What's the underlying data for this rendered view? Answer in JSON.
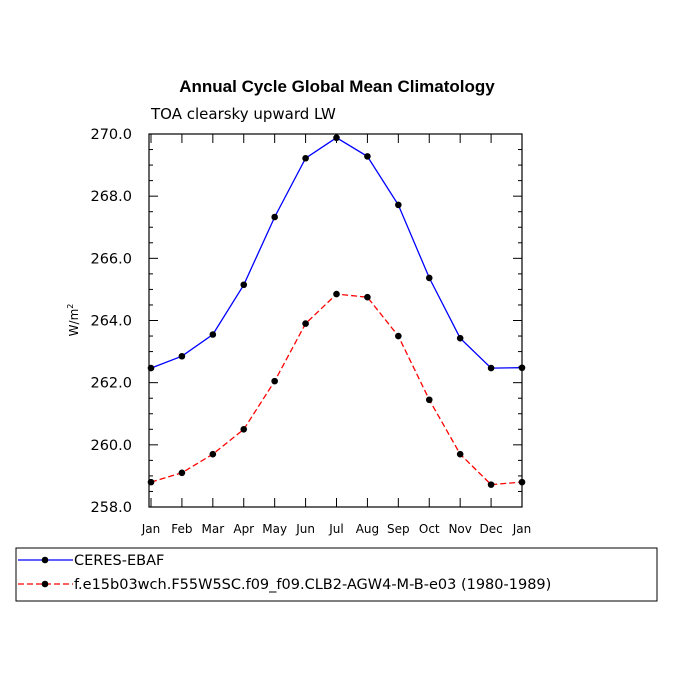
{
  "chart_data": {
    "type": "line",
    "title": "Annual Cycle Global Mean Climatology",
    "subtitle": "TOA clearsky upward LW",
    "xlabel": "",
    "ylabel": "W/m",
    "ylabel_superscript": "2",
    "ylim": [
      258.0,
      270.0
    ],
    "yticks": [
      "258.0",
      "260.0",
      "262.0",
      "264.0",
      "266.0",
      "268.0",
      "270.0"
    ],
    "categories": [
      "Jan",
      "Feb",
      "Mar",
      "Apr",
      "May",
      "Jun",
      "Jul",
      "Aug",
      "Sep",
      "Oct",
      "Nov",
      "Dec",
      "Jan"
    ],
    "series": [
      {
        "name": "CERES-EBAF",
        "color": "#0000ff",
        "dash": "solid",
        "values": [
          262.47,
          262.85,
          263.55,
          265.15,
          267.33,
          269.22,
          269.88,
          269.28,
          267.72,
          265.37,
          263.43,
          262.47,
          262.48
        ]
      },
      {
        "name": "f.e15b03wch.F55W5SC.f09_f09.CLB2-AGW4-M-B-e03 (1980-1989)",
        "color": "#ff0000",
        "dash": "dashed",
        "values": [
          258.8,
          259.1,
          259.7,
          260.5,
          262.05,
          263.9,
          264.85,
          264.75,
          263.5,
          261.45,
          259.7,
          258.72,
          258.8
        ]
      }
    ],
    "legend_position": "bottom-left"
  }
}
